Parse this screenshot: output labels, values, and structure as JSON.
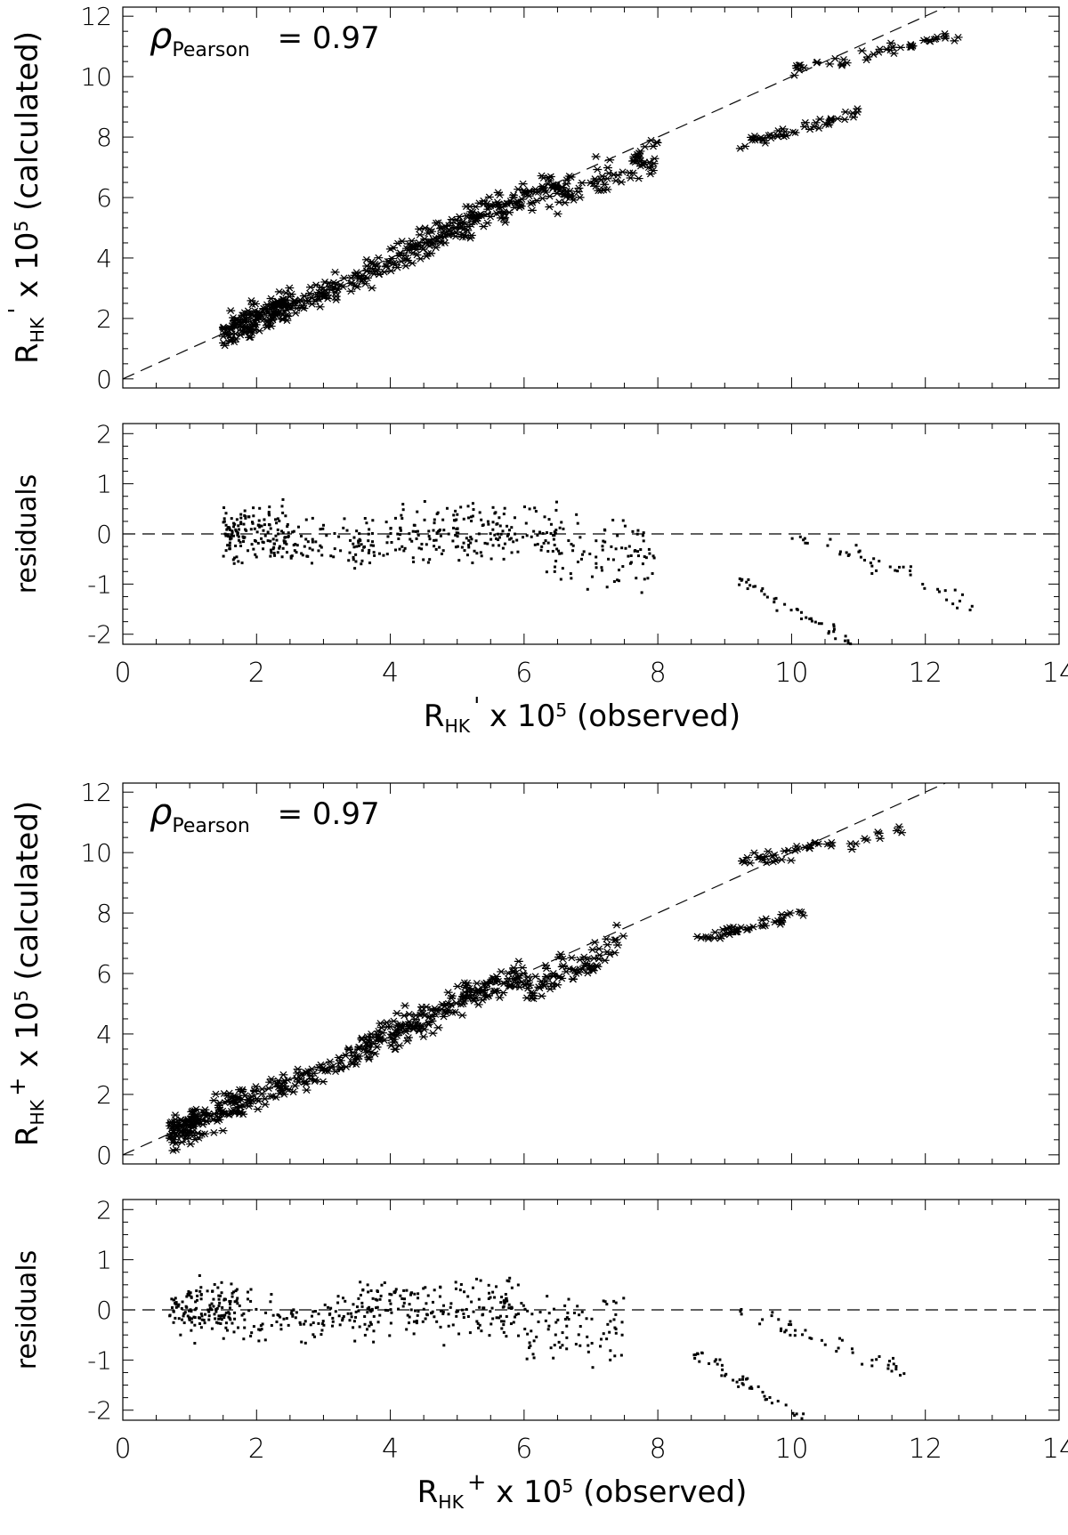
{
  "chart_data": [
    {
      "panel": "top-scatter",
      "type": "scatter",
      "marker": "asterisk",
      "ylabel": {
        "main": "R",
        "sub": "HK",
        "sup": "'",
        "rest": " x 10",
        "exp": "5",
        "tail": " (calculated)"
      },
      "xlim": [
        0,
        14
      ],
      "ylim": [
        -0.3,
        12.3
      ],
      "yticks": [
        0,
        2,
        4,
        6,
        8,
        10,
        12
      ],
      "xticks": [
        0,
        2,
        4,
        6,
        8,
        10,
        12,
        14
      ],
      "annotation": {
        "rho": "ρ",
        "sub": "Pearson",
        "value": "= 0.97"
      },
      "reference_line": {
        "style": "dashed",
        "slope": 1,
        "intercept": 0
      },
      "clusters": [
        {
          "x_start": 1.5,
          "x_end": 2.5,
          "intercept": 0,
          "slope": 1,
          "spread": 0.45,
          "count": 150
        },
        {
          "x_start": 2.5,
          "x_end": 4.0,
          "intercept": 0,
          "slope": 0.95,
          "spread": 0.35,
          "count": 90
        },
        {
          "x_start": 4.0,
          "x_end": 6.5,
          "intercept": 0,
          "slope": 1.0,
          "spread": 0.45,
          "count": 200
        },
        {
          "x_start": 6.5,
          "x_end": 8.0,
          "intercept": 0,
          "slope": 0.93,
          "spread": 0.5,
          "count": 80
        },
        {
          "x_start": 9.2,
          "x_end": 11.0,
          "intercept": 2.4,
          "slope": 0.58,
          "spread": 0.15,
          "count": 45
        },
        {
          "x_start": 10.0,
          "x_end": 12.5,
          "intercept": 5.5,
          "slope": 0.47,
          "spread": 0.2,
          "count": 45
        }
      ]
    },
    {
      "panel": "top-residuals",
      "type": "scatter",
      "marker": "dot",
      "ylabel": "residuals",
      "xlabel": {
        "main": "R",
        "sub": "HK",
        "sup": "'",
        "rest": " x 10",
        "exp": "5",
        "tail": " (observed)"
      },
      "xlim": [
        0,
        14
      ],
      "ylim": [
        -2.2,
        2.2
      ],
      "yticks": [
        -2,
        -1,
        0,
        1,
        2
      ],
      "xticks": [
        0,
        2,
        4,
        6,
        8,
        10,
        12,
        14
      ],
      "reference_line": {
        "style": "dashed",
        "y": 0
      },
      "clusters": [
        {
          "x_start": 1.5,
          "x_end": 2.5,
          "intercept": 0,
          "slope": 0,
          "spread": 0.45,
          "count": 150
        },
        {
          "x_start": 2.5,
          "x_end": 4.0,
          "intercept": -0.2,
          "slope": 0,
          "spread": 0.4,
          "count": 90
        },
        {
          "x_start": 4.0,
          "x_end": 6.5,
          "intercept": 0,
          "slope": 0,
          "spread": 0.5,
          "count": 200
        },
        {
          "x_start": 6.5,
          "x_end": 8.0,
          "intercept": -0.4,
          "slope": 0,
          "spread": 0.6,
          "count": 80
        },
        {
          "x_start": 9.2,
          "x_end": 11.0,
          "intercept": 6.2,
          "slope": -0.77,
          "spread": 0.12,
          "count": 45
        },
        {
          "x_start": 10.0,
          "x_end": 12.7,
          "intercept": 5.0,
          "slope": -0.5,
          "spread": 0.18,
          "count": 45
        }
      ]
    },
    {
      "panel": "bottom-scatter",
      "type": "scatter",
      "marker": "asterisk",
      "ylabel": {
        "main": "R",
        "sub": "HK",
        "sup": "+",
        "rest": " x 10",
        "exp": "5",
        "tail": " (calculated)"
      },
      "xlim": [
        0,
        14
      ],
      "ylim": [
        -0.3,
        12.3
      ],
      "yticks": [
        0,
        2,
        4,
        6,
        8,
        10,
        12
      ],
      "xticks": [
        0,
        2,
        4,
        6,
        8,
        10,
        12,
        14
      ],
      "annotation": {
        "rho": "ρ",
        "sub": "Pearson",
        "value": "= 0.97"
      },
      "reference_line": {
        "style": "dashed",
        "slope": 1,
        "intercept": 0
      },
      "clusters": [
        {
          "x_start": 0.7,
          "x_end": 1.8,
          "intercept": 0,
          "slope": 1,
          "spread": 0.45,
          "count": 150
        },
        {
          "x_start": 1.8,
          "x_end": 3.5,
          "intercept": 0,
          "slope": 0.95,
          "spread": 0.35,
          "count": 90
        },
        {
          "x_start": 3.5,
          "x_end": 6.0,
          "intercept": 0,
          "slope": 1.0,
          "spread": 0.45,
          "count": 200
        },
        {
          "x_start": 6.0,
          "x_end": 7.5,
          "intercept": 0,
          "slope": 0.93,
          "spread": 0.5,
          "count": 80
        },
        {
          "x_start": 8.5,
          "x_end": 10.2,
          "intercept": 2.4,
          "slope": 0.55,
          "spread": 0.15,
          "count": 45
        },
        {
          "x_start": 9.2,
          "x_end": 11.7,
          "intercept": 5.3,
          "slope": 0.47,
          "spread": 0.2,
          "count": 45
        }
      ]
    },
    {
      "panel": "bottom-residuals",
      "type": "scatter",
      "marker": "dot",
      "ylabel": "residuals",
      "xlabel": {
        "main": "R",
        "sub": "HK",
        "sup": "+",
        "rest": " x 10",
        "exp": "5",
        "tail": " (observed)"
      },
      "xlim": [
        0,
        14
      ],
      "ylim": [
        -2.2,
        2.2
      ],
      "yticks": [
        -2,
        -1,
        0,
        1,
        2
      ],
      "xticks": [
        0,
        2,
        4,
        6,
        8,
        10,
        12,
        14
      ],
      "reference_line": {
        "style": "dashed",
        "y": 0
      },
      "clusters": [
        {
          "x_start": 0.7,
          "x_end": 1.8,
          "intercept": 0,
          "slope": 0,
          "spread": 0.45,
          "count": 150
        },
        {
          "x_start": 1.8,
          "x_end": 3.5,
          "intercept": -0.2,
          "slope": 0,
          "spread": 0.4,
          "count": 90
        },
        {
          "x_start": 3.5,
          "x_end": 6.0,
          "intercept": 0,
          "slope": 0,
          "spread": 0.5,
          "count": 200
        },
        {
          "x_start": 6.0,
          "x_end": 7.5,
          "intercept": -0.4,
          "slope": 0,
          "spread": 0.6,
          "count": 80
        },
        {
          "x_start": 8.5,
          "x_end": 10.2,
          "intercept": 5.7,
          "slope": -0.77,
          "spread": 0.12,
          "count": 45
        },
        {
          "x_start": 9.2,
          "x_end": 11.7,
          "intercept": 4.6,
          "slope": -0.5,
          "spread": 0.18,
          "count": 45
        }
      ]
    }
  ]
}
